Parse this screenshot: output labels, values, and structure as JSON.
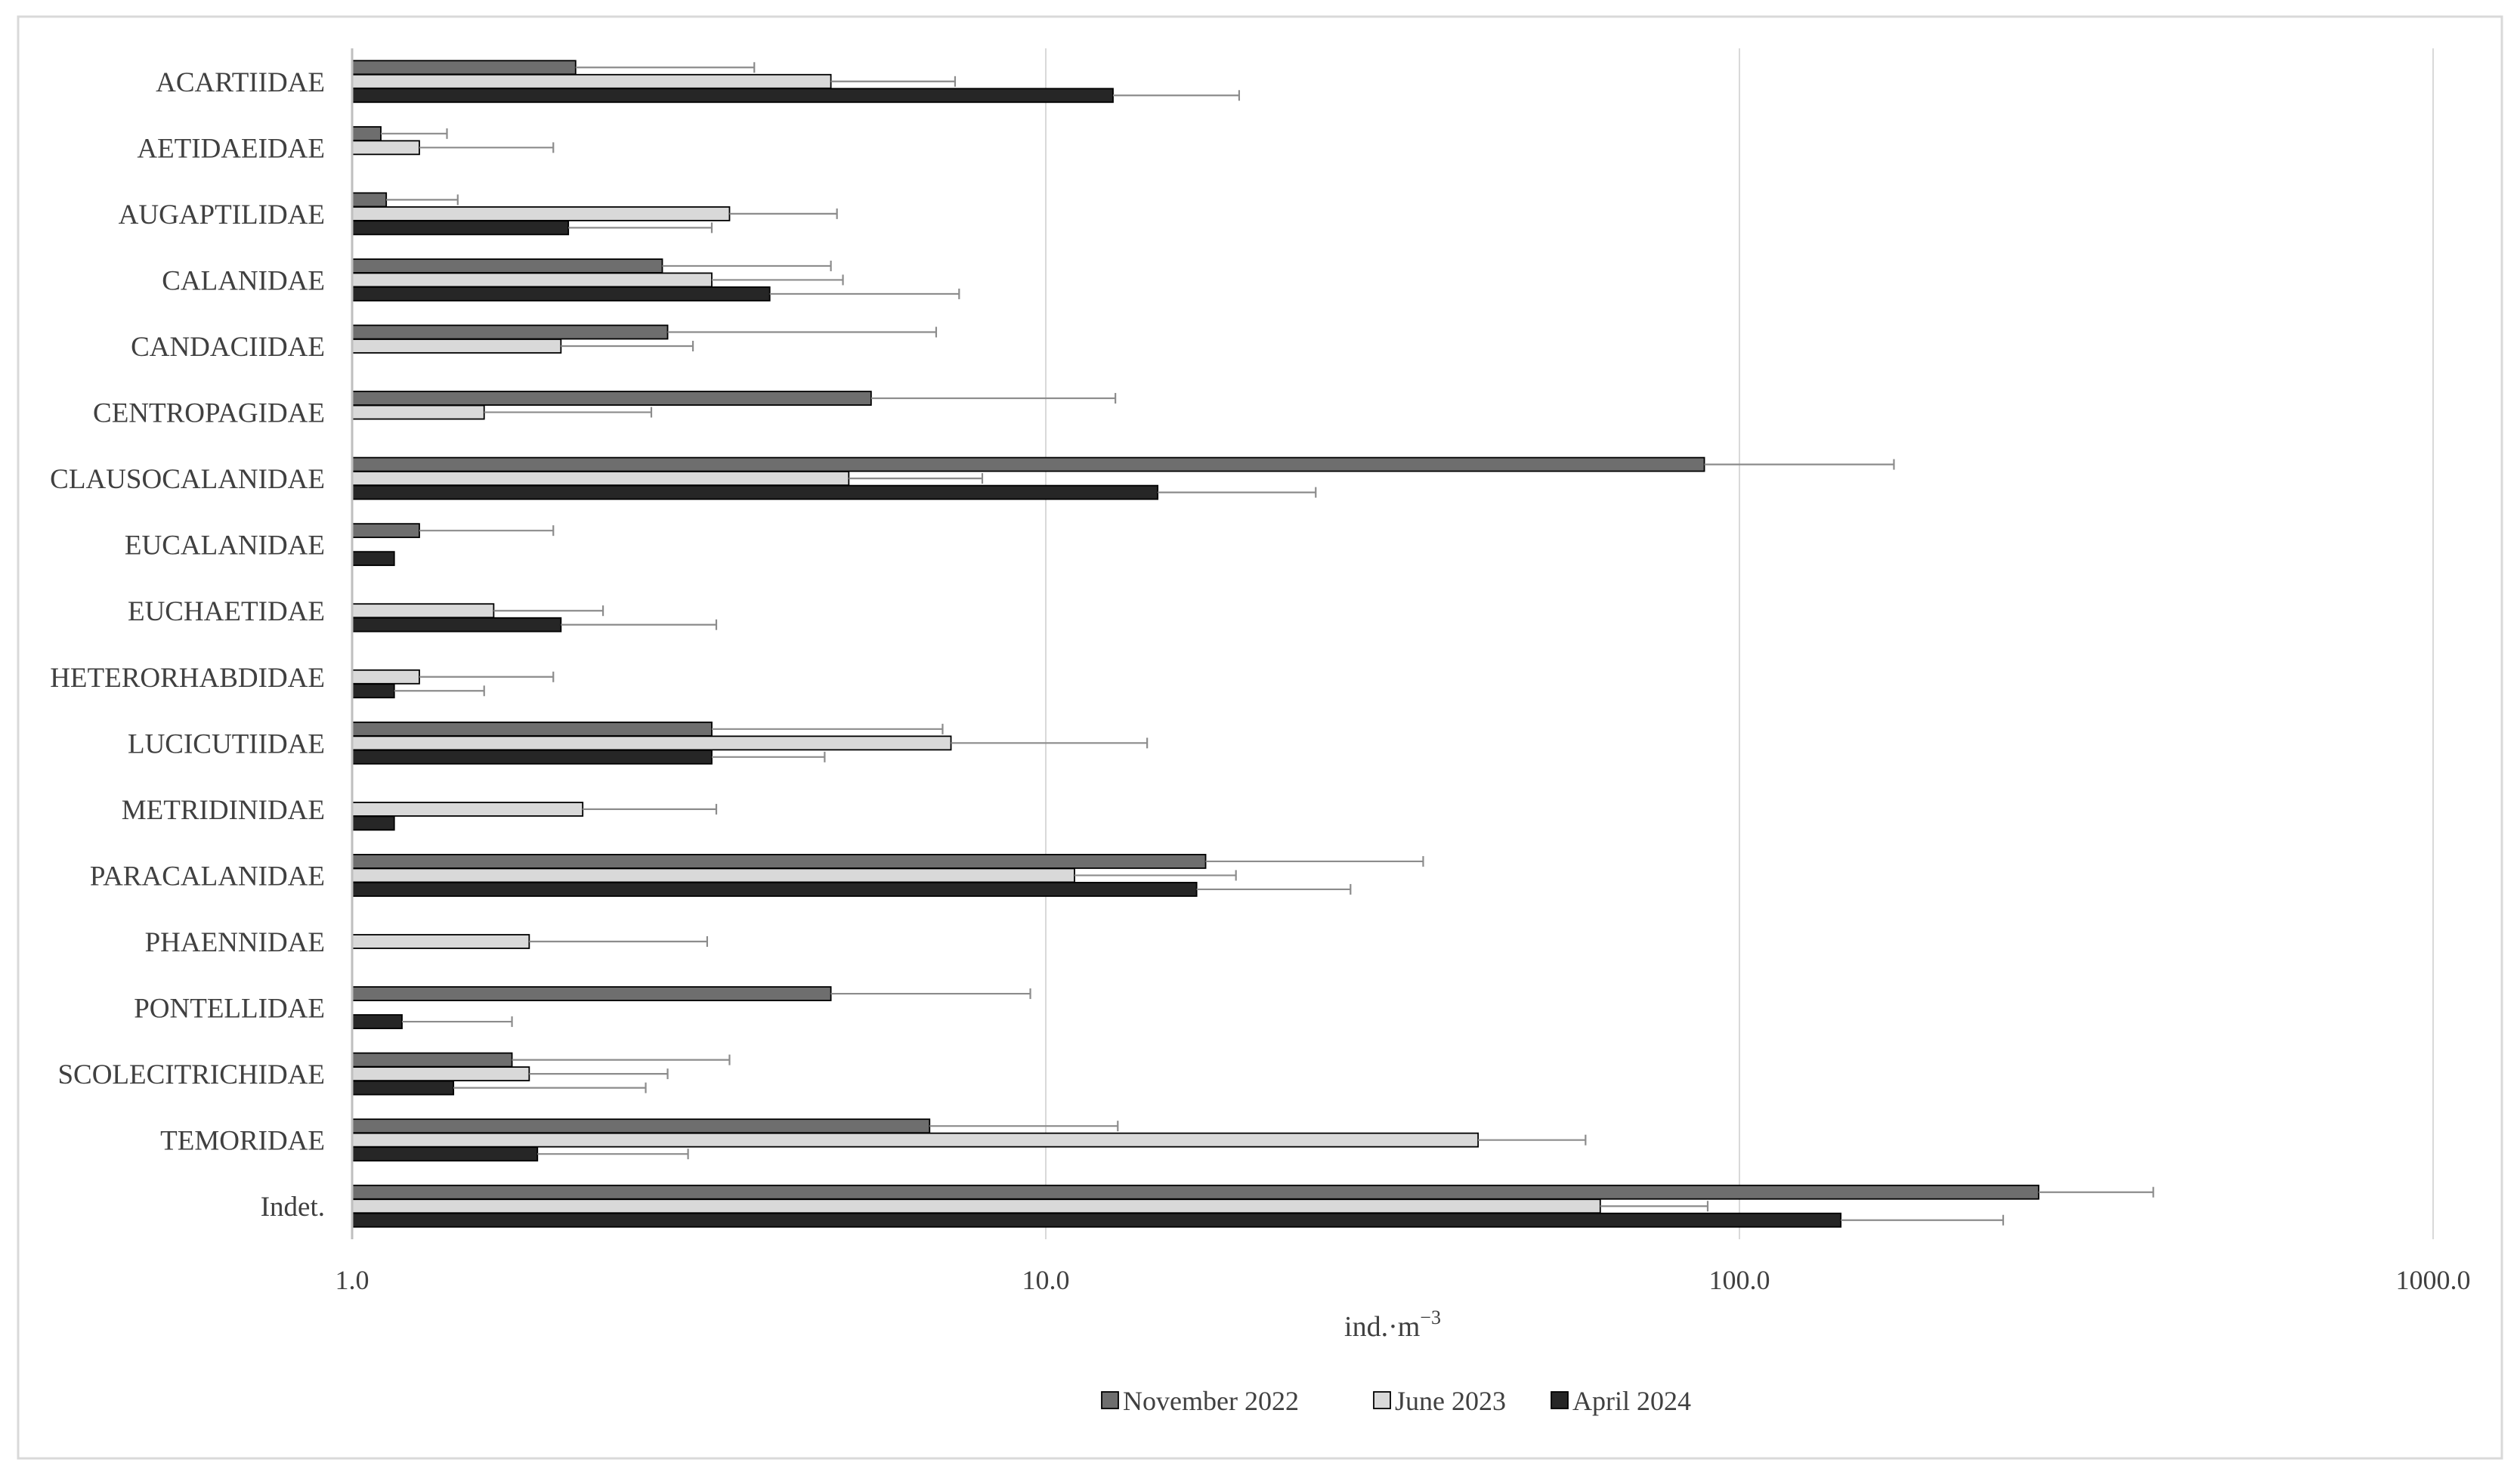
{
  "chart_data": {
    "type": "bar",
    "orientation": "horizontal",
    "x_scale": "log",
    "xlim": [
      1.0,
      1000.0
    ],
    "x_ticks": [
      "1.0",
      "10.0",
      "100.0",
      "1000.0"
    ],
    "xlabel": "ind.·m",
    "xlabel_sup": "−3",
    "grid": "vertical",
    "legend_position": "bottom",
    "categories": [
      "ACARTIIDAE",
      "AETIDAEIDAE",
      "AUGAPTILIDAE",
      "CALANIDAE",
      "CANDACIIDAE",
      "CENTROPAGIDAE",
      "CLAUSOCALANIDAE",
      "EUCALANIDAE",
      "EUCHAETIDAE",
      "HETERORHABDIDAE",
      "LUCICUTIIDAE",
      "METRIDINIDAE",
      "PARACALANIDAE",
      "PHAENNIDAE",
      "PONTELLIDAE",
      "SCOLECITRICHIDAE",
      "TEMORIDAE",
      "Indet."
    ],
    "series": [
      {
        "name": "November 2022",
        "color": "#6e6e6e",
        "values": [
          2.1,
          1.1,
          1.12,
          2.8,
          2.85,
          5.6,
          89.0,
          1.25,
          null,
          null,
          3.3,
          null,
          17.0,
          null,
          4.9,
          1.7,
          6.8,
          270.0
        ],
        "errors": [
          1.7,
          0.27,
          0.3,
          2.1,
          4.1,
          7.0,
          78.0,
          0.7,
          null,
          null,
          3.8,
          null,
          18.0,
          null,
          4.6,
          1.8,
          5.9,
          125.0
        ]
      },
      {
        "name": "June 2023",
        "color": "#d9d9d9",
        "values": [
          4.9,
          1.25,
          3.5,
          3.3,
          2.0,
          1.55,
          5.2,
          null,
          1.6,
          1.25,
          7.3,
          2.15,
          11.0,
          1.8,
          null,
          1.8,
          42.0,
          63.0
        ],
        "errors": [
          2.5,
          0.7,
          1.5,
          1.8,
          1.1,
          1.15,
          2.9,
          null,
          0.7,
          0.7,
          6.7,
          1.2,
          7.8,
          1.45,
          null,
          1.05,
          18.0,
          27.0
        ]
      },
      {
        "name": "April 2024",
        "color": "#262626",
        "values": [
          12.5,
          null,
          2.05,
          4.0,
          null,
          null,
          14.5,
          1.15,
          2.0,
          1.15,
          3.3,
          1.15,
          16.5,
          null,
          1.18,
          1.4,
          1.85,
          140.0
        ],
        "errors": [
          6.5,
          null,
          1.25,
          3.5,
          null,
          null,
          10.0,
          null,
          1.35,
          0.4,
          1.5,
          null,
          11.0,
          null,
          0.52,
          1.25,
          1.2,
          100.0
        ]
      }
    ]
  }
}
